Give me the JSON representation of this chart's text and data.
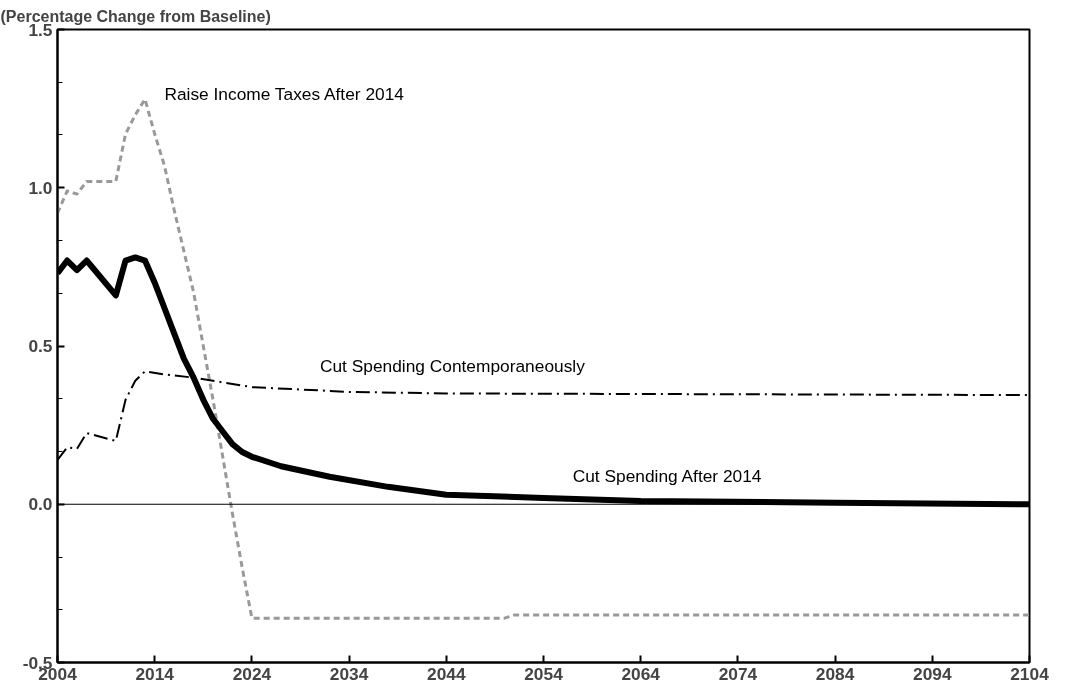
{
  "chart_data": {
    "type": "line",
    "ylabel": "(Percentage Change from Baseline)",
    "xlim": [
      2004,
      2104
    ],
    "xticks": [
      2004,
      2014,
      2024,
      2034,
      2044,
      2054,
      2064,
      2074,
      2084,
      2094,
      2104
    ],
    "ylim": [
      -0.5,
      1.5
    ],
    "yticks": [
      {
        "value": -0.5,
        "label": "-0.5"
      },
      {
        "value": -0.3333,
        "label": null
      },
      {
        "value": -0.1667,
        "label": null
      },
      {
        "value": 0,
        "label": "0.0"
      },
      {
        "value": 0.1667,
        "label": null
      },
      {
        "value": 0.3333,
        "label": null
      },
      {
        "value": 0.5,
        "label": "0.5"
      },
      {
        "value": 0.6667,
        "label": null
      },
      {
        "value": 0.8333,
        "label": null
      },
      {
        "value": 1,
        "label": "1.0"
      },
      {
        "value": 1.1667,
        "label": null
      },
      {
        "value": 1.3333,
        "label": null
      },
      {
        "value": 1.5,
        "label": "1.5"
      }
    ],
    "grid": false,
    "ref_lines": [
      {
        "axis": "y",
        "value": 0,
        "label": null,
        "color": "#000000"
      }
    ],
    "series": [
      {
        "name": "Raise Income Taxes After 2014",
        "color": "#999999",
        "line_style": "dashed",
        "x": [
          2004,
          2005,
          2006,
          2007,
          2010,
          2011,
          2012,
          2013,
          2014,
          2015,
          2016,
          2017,
          2018,
          2019,
          2020,
          2021,
          2022,
          2023,
          2024,
          2050,
          2051,
          2104
        ],
        "values": [
          0.92,
          0.99,
          0.98,
          1.02,
          1.02,
          1.17,
          1.23,
          1.28,
          1.17,
          1.07,
          0.93,
          0.8,
          0.67,
          0.5,
          0.33,
          0.15,
          -0.03,
          -0.2,
          -0.36,
          -0.36,
          -0.35,
          -0.35
        ]
      },
      {
        "name": "Cut Spending After 2014",
        "color": "#000000",
        "line_style": "solid",
        "x": [
          2004,
          2005,
          2006,
          2007,
          2010,
          2011,
          2012,
          2013,
          2014,
          2015,
          2016,
          2017,
          2018,
          2019,
          2020,
          2021,
          2022,
          2023,
          2024,
          2027,
          2032,
          2038,
          2044,
          2054,
          2064,
          2084,
          2104
        ],
        "values": [
          0.73,
          0.77,
          0.74,
          0.77,
          0.66,
          0.77,
          0.78,
          0.77,
          0.7,
          0.62,
          0.54,
          0.46,
          0.4,
          0.33,
          0.27,
          0.23,
          0.19,
          0.165,
          0.15,
          0.12,
          0.087,
          0.055,
          0.03,
          0.02,
          0.01,
          0.005,
          0
        ]
      },
      {
        "name": "Cut Spending Contemporaneously",
        "color": "#000000",
        "line_style": "dashdot",
        "x": [
          2004,
          2005,
          2006,
          2007,
          2010,
          2011,
          2012,
          2013,
          2015,
          2018,
          2024,
          2034,
          2044,
          2104
        ],
        "values": [
          0.14,
          0.18,
          0.175,
          0.225,
          0.2,
          0.33,
          0.39,
          0.42,
          0.41,
          0.4,
          0.37,
          0.355,
          0.35,
          0.345
        ]
      }
    ]
  }
}
